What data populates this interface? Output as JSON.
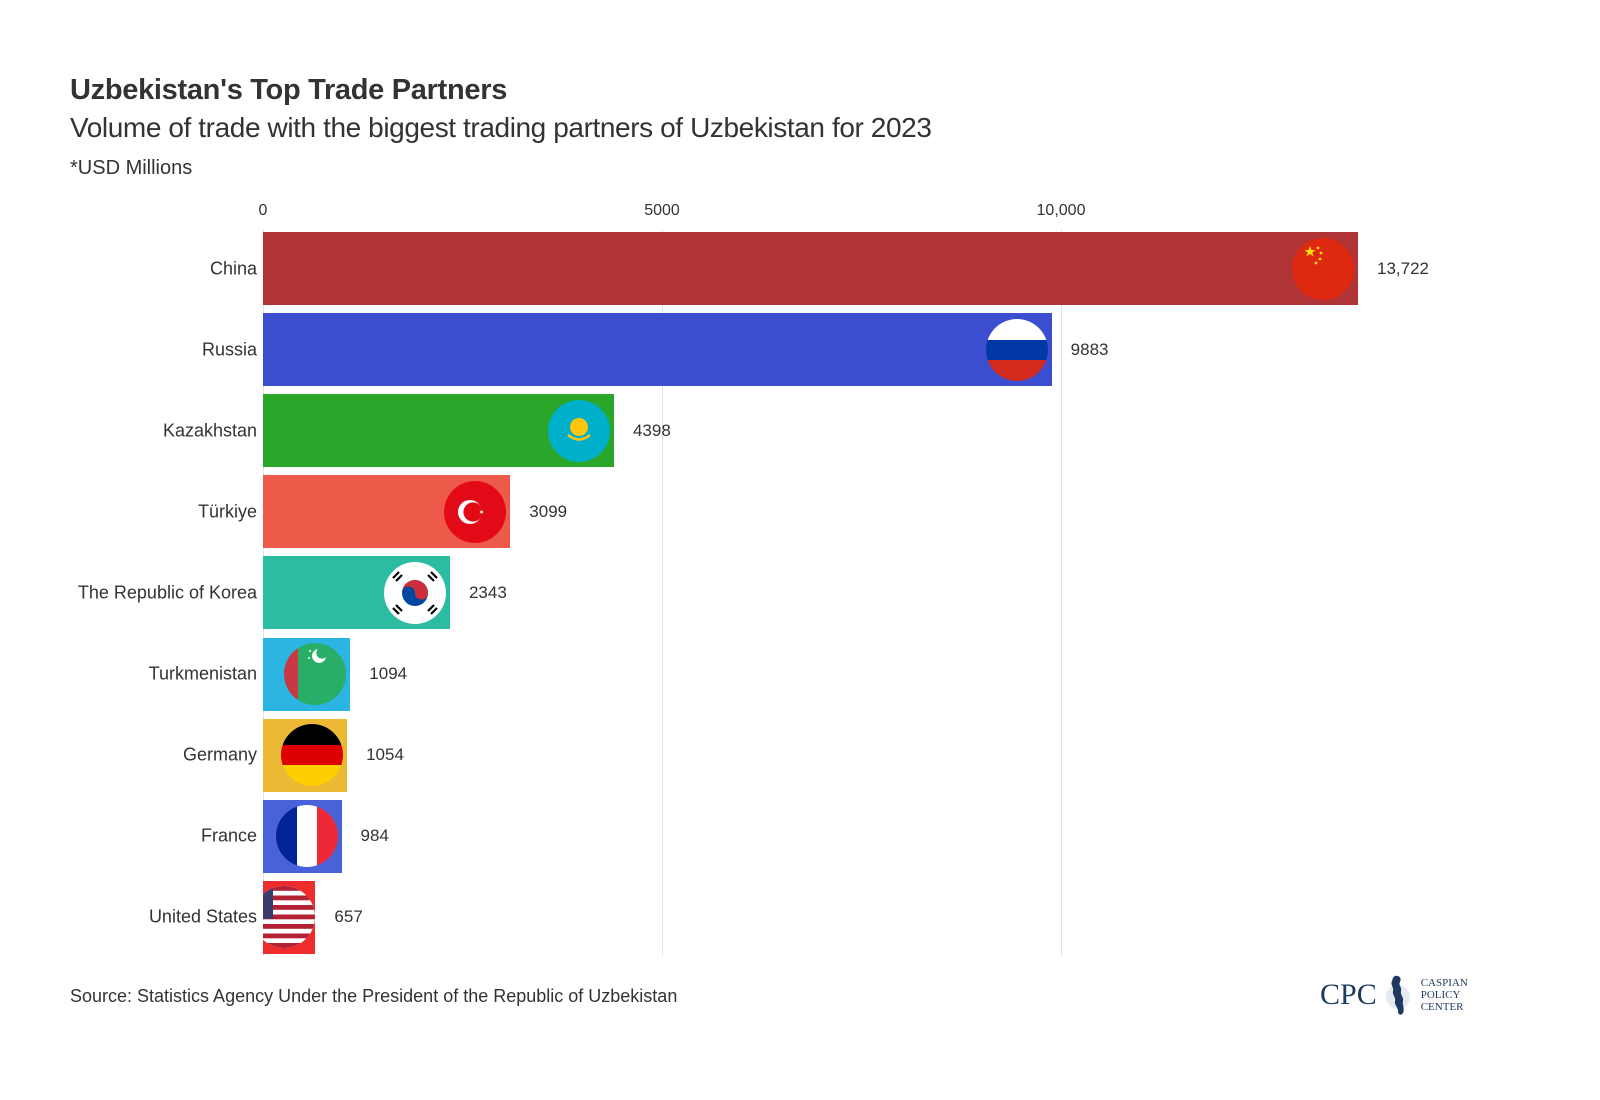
{
  "header": {
    "title": "Uzbekistan's Top Trade Partners",
    "subtitle": "Volume of trade with the biggest trading partners of Uzbekistan for 2023",
    "unit_note": "*USD Millions"
  },
  "footer": {
    "source": "Source: Statistics Agency Under the President of the Republic of Uzbekistan",
    "logo_abbr": "CPC",
    "logo_line1": "CASPIAN",
    "logo_line2": "POLICY",
    "logo_line3": "CENTER"
  },
  "axis": {
    "ticks": [
      {
        "value": 0,
        "label": "0"
      },
      {
        "value": 5000,
        "label": "5000"
      },
      {
        "value": 10000,
        "label": "10,000"
      }
    ]
  },
  "rows": [
    {
      "country": "China",
      "value": 13722,
      "label": "13,722",
      "color": "#b03436",
      "flag": "china-flag-icon"
    },
    {
      "country": "Russia",
      "value": 9883,
      "label": "9883",
      "color": "#3a4ecf",
      "flag": "russia-flag-icon"
    },
    {
      "country": "Kazakhstan",
      "value": 4398,
      "label": "4398",
      "color": "#2aa72a",
      "flag": "kazakhstan-flag-icon"
    },
    {
      "country": "Türkiye",
      "value": 3099,
      "label": "3099",
      "color": "#ee5a4a",
      "flag": "turkiye-flag-icon"
    },
    {
      "country": "The Republic of Korea",
      "value": 2343,
      "label": "2343",
      "color": "#2bbca2",
      "flag": "korea-flag-icon"
    },
    {
      "country": "Turkmenistan",
      "value": 1094,
      "label": "1094",
      "color": "#2cb5e3",
      "flag": "turkmenistan-flag-icon"
    },
    {
      "country": "Germany",
      "value": 1054,
      "label": "1054",
      "color": "#ecb934",
      "flag": "germany-flag-icon"
    },
    {
      "country": "France",
      "value": 984,
      "label": "984",
      "color": "#4a62d8",
      "flag": "france-flag-icon"
    },
    {
      "country": "United States",
      "value": 657,
      "label": "657",
      "color": "#ee2c2c",
      "flag": "usa-flag-icon"
    }
  ],
  "chart_data": {
    "type": "bar",
    "orientation": "horizontal",
    "title": "Uzbekistan's Top Trade Partners",
    "subtitle": "Volume of trade with the biggest trading partners of Uzbekistan for 2023",
    "xlabel": "",
    "ylabel": "",
    "unit": "USD Millions",
    "categories": [
      "China",
      "Russia",
      "Kazakhstan",
      "Türkiye",
      "The Republic of Korea",
      "Turkmenistan",
      "Germany",
      "France",
      "United States"
    ],
    "values": [
      13722,
      9883,
      4398,
      3099,
      2343,
      1094,
      1054,
      984,
      657
    ],
    "xlim": [
      0,
      14000
    ],
    "x_ticks": [
      0,
      5000,
      10000
    ],
    "x_tick_labels": [
      "0",
      "5000",
      "10,000"
    ],
    "grid": true,
    "legend": null,
    "source": "Statistics Agency Under the President of the Republic of Uzbekistan"
  }
}
